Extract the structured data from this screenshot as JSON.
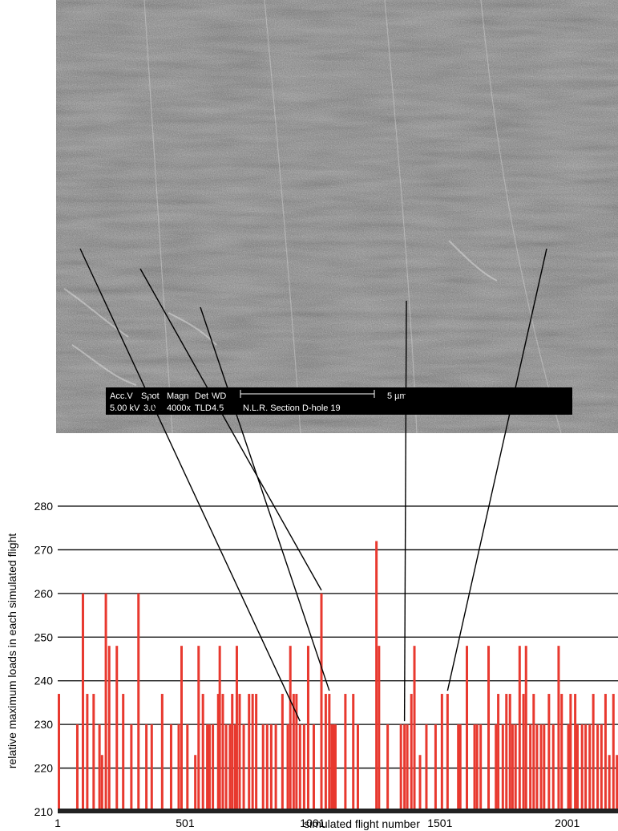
{
  "micrograph": {
    "scale_bar": {
      "header": [
        "Acc.V",
        "Spot",
        "Magn",
        "Det",
        "WD"
      ],
      "values": [
        "5.00 kV",
        "3.0",
        "4000x",
        "TLD",
        "4.5"
      ],
      "length_label": "5 µm",
      "sample_label": "N.L.R. Section D-hole 19"
    }
  },
  "chart_data": {
    "type": "bar",
    "xlabel": "simulated flight number",
    "ylabel": "relative maximum loads in each simulated flight",
    "xlim": [
      1,
      2200
    ],
    "ylim": [
      210,
      280
    ],
    "x_ticks": [
      1,
      501,
      1001,
      1501,
      2001
    ],
    "x_tick_labels": [
      "1",
      "501",
      "1001",
      "1501",
      "2001"
    ],
    "y_ticks": [
      210,
      220,
      230,
      240,
      250,
      260,
      270,
      280
    ],
    "y_tick_labels": [
      "210",
      "220",
      "230",
      "240",
      "250",
      "260",
      "270",
      "280"
    ],
    "grid": "horizontal",
    "bar_color": "#e8392f",
    "x": [
      2,
      78,
      100,
      117,
      142,
      165,
      175,
      190,
      203,
      233,
      258,
      290,
      318,
      349,
      370,
      411,
      446,
      476,
      487,
      510,
      541,
      554,
      571,
      588,
      597,
      610,
      631,
      637,
      649,
      662,
      677,
      686,
      697,
      704,
      715,
      731,
      752,
      766,
      780,
      807,
      823,
      839,
      857,
      883,
      904,
      914,
      927,
      938,
      952,
      968,
      984,
      1006,
      1036,
      1053,
      1067,
      1077,
      1085,
      1091,
      1130,
      1161,
      1179,
      1252,
      1262,
      1296,
      1348,
      1362,
      1373,
      1389,
      1401,
      1423,
      1448,
      1484,
      1509,
      1531,
      1573,
      1581,
      1607,
      1637,
      1647,
      1661,
      1692,
      1721,
      1730,
      1748,
      1762,
      1776,
      1786,
      1798,
      1814,
      1829,
      1839,
      1856,
      1869,
      1882,
      1898,
      1910,
      1929,
      1946,
      1967,
      1979,
      2005,
      2014,
      2032,
      2041,
      2059,
      2073,
      2089,
      2103,
      2120,
      2135,
      2151,
      2166,
      2182,
      2196
    ],
    "values": [
      237,
      230,
      260,
      237,
      237,
      230,
      223,
      260,
      248,
      248,
      237,
      230,
      260,
      230,
      230,
      237,
      230,
      230,
      248,
      230,
      223,
      248,
      237,
      230,
      230,
      230,
      237,
      248,
      237,
      230,
      230,
      237,
      230,
      248,
      237,
      230,
      237,
      237,
      237,
      230,
      230,
      230,
      230,
      237,
      230,
      248,
      237,
      237,
      230,
      230,
      248,
      230,
      260,
      237,
      237,
      230,
      230,
      230,
      237,
      237,
      230,
      272,
      248,
      230,
      230,
      230,
      230,
      237,
      248,
      223,
      230,
      230,
      237,
      237,
      230,
      230,
      248,
      230,
      230,
      230,
      248,
      230,
      237,
      230,
      237,
      237,
      230,
      230,
      248,
      237,
      248,
      230,
      237,
      230,
      230,
      230,
      237,
      230,
      248,
      237,
      230,
      237,
      237,
      230,
      230,
      230,
      230,
      237,
      230,
      230,
      237,
      223,
      237,
      223
    ],
    "annotation_lines_to_bars": [
      952,
      1036,
      1067,
      1362,
      1531
    ]
  }
}
